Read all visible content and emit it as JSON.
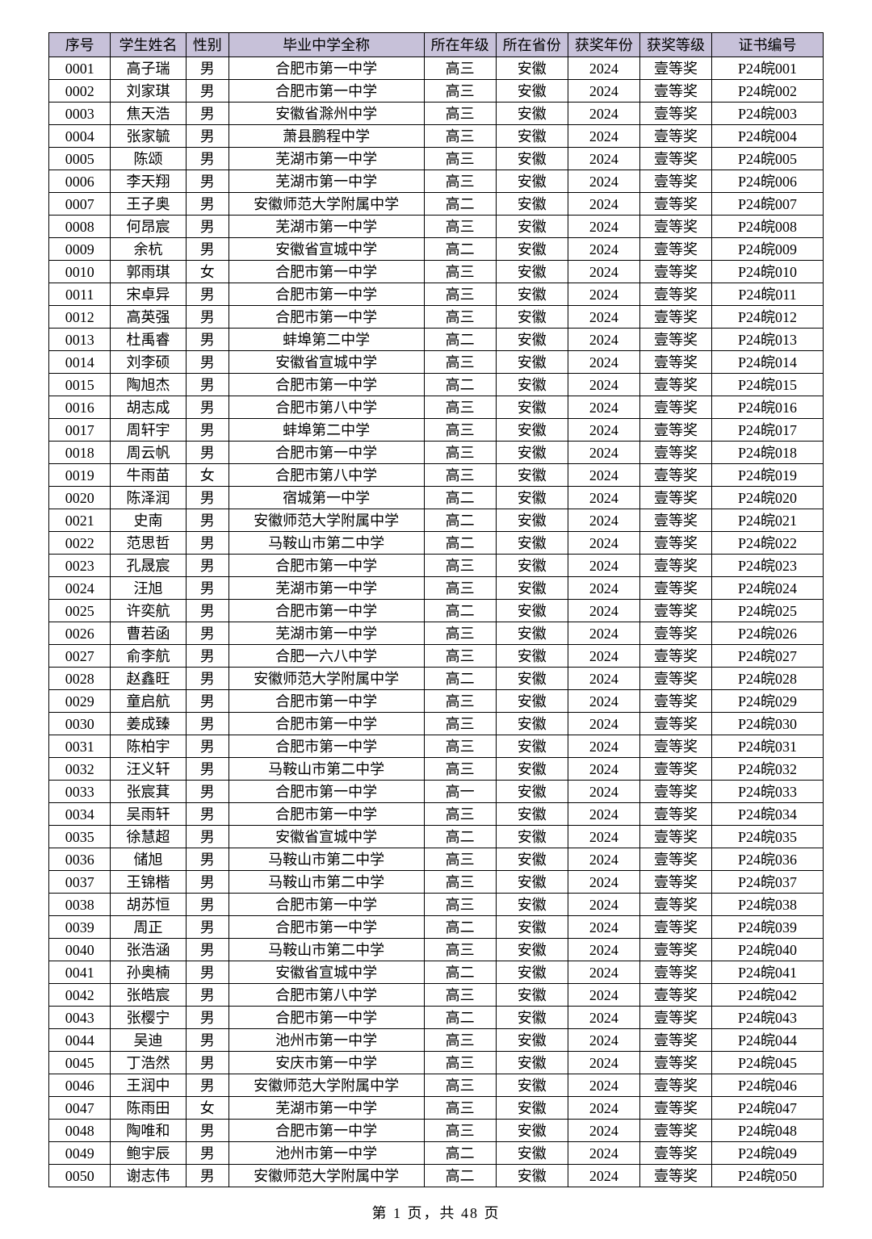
{
  "columns": [
    "序号",
    "学生姓名",
    "性别",
    "毕业中学全称",
    "所在年级",
    "所在省份",
    "获奖年份",
    "获奖等级",
    "证书编号"
  ],
  "rows": [
    [
      "0001",
      "高子瑞",
      "男",
      "合肥市第一中学",
      "高三",
      "安徽",
      "2024",
      "壹等奖",
      "P24皖001"
    ],
    [
      "0002",
      "刘家琪",
      "男",
      "合肥市第一中学",
      "高三",
      "安徽",
      "2024",
      "壹等奖",
      "P24皖002"
    ],
    [
      "0003",
      "焦天浩",
      "男",
      "安徽省滁州中学",
      "高三",
      "安徽",
      "2024",
      "壹等奖",
      "P24皖003"
    ],
    [
      "0004",
      "张家毓",
      "男",
      "萧县鹏程中学",
      "高三",
      "安徽",
      "2024",
      "壹等奖",
      "P24皖004"
    ],
    [
      "0005",
      "陈颂",
      "男",
      "芜湖市第一中学",
      "高三",
      "安徽",
      "2024",
      "壹等奖",
      "P24皖005"
    ],
    [
      "0006",
      "李天翔",
      "男",
      "芜湖市第一中学",
      "高三",
      "安徽",
      "2024",
      "壹等奖",
      "P24皖006"
    ],
    [
      "0007",
      "王子奥",
      "男",
      "安徽师范大学附属中学",
      "高二",
      "安徽",
      "2024",
      "壹等奖",
      "P24皖007"
    ],
    [
      "0008",
      "何昂宸",
      "男",
      "芜湖市第一中学",
      "高三",
      "安徽",
      "2024",
      "壹等奖",
      "P24皖008"
    ],
    [
      "0009",
      "余杭",
      "男",
      "安徽省宣城中学",
      "高二",
      "安徽",
      "2024",
      "壹等奖",
      "P24皖009"
    ],
    [
      "0010",
      "郭雨琪",
      "女",
      "合肥市第一中学",
      "高三",
      "安徽",
      "2024",
      "壹等奖",
      "P24皖010"
    ],
    [
      "0011",
      "宋卓异",
      "男",
      "合肥市第一中学",
      "高三",
      "安徽",
      "2024",
      "壹等奖",
      "P24皖011"
    ],
    [
      "0012",
      "高英强",
      "男",
      "合肥市第一中学",
      "高三",
      "安徽",
      "2024",
      "壹等奖",
      "P24皖012"
    ],
    [
      "0013",
      "杜禹睿",
      "男",
      "蚌埠第二中学",
      "高二",
      "安徽",
      "2024",
      "壹等奖",
      "P24皖013"
    ],
    [
      "0014",
      "刘李硕",
      "男",
      "安徽省宣城中学",
      "高三",
      "安徽",
      "2024",
      "壹等奖",
      "P24皖014"
    ],
    [
      "0015",
      "陶旭杰",
      "男",
      "合肥市第一中学",
      "高二",
      "安徽",
      "2024",
      "壹等奖",
      "P24皖015"
    ],
    [
      "0016",
      "胡志成",
      "男",
      "合肥市第八中学",
      "高三",
      "安徽",
      "2024",
      "壹等奖",
      "P24皖016"
    ],
    [
      "0017",
      "周轩宇",
      "男",
      "蚌埠第二中学",
      "高三",
      "安徽",
      "2024",
      "壹等奖",
      "P24皖017"
    ],
    [
      "0018",
      "周云帆",
      "男",
      "合肥市第一中学",
      "高三",
      "安徽",
      "2024",
      "壹等奖",
      "P24皖018"
    ],
    [
      "0019",
      "牛雨苗",
      "女",
      "合肥市第八中学",
      "高三",
      "安徽",
      "2024",
      "壹等奖",
      "P24皖019"
    ],
    [
      "0020",
      "陈泽润",
      "男",
      "宿城第一中学",
      "高二",
      "安徽",
      "2024",
      "壹等奖",
      "P24皖020"
    ],
    [
      "0021",
      "史南",
      "男",
      "安徽师范大学附属中学",
      "高二",
      "安徽",
      "2024",
      "壹等奖",
      "P24皖021"
    ],
    [
      "0022",
      "范思哲",
      "男",
      "马鞍山市第二中学",
      "高二",
      "安徽",
      "2024",
      "壹等奖",
      "P24皖022"
    ],
    [
      "0023",
      "孔晟宸",
      "男",
      "合肥市第一中学",
      "高三",
      "安徽",
      "2024",
      "壹等奖",
      "P24皖023"
    ],
    [
      "0024",
      "汪旭",
      "男",
      "芜湖市第一中学",
      "高三",
      "安徽",
      "2024",
      "壹等奖",
      "P24皖024"
    ],
    [
      "0025",
      "许奕航",
      "男",
      "合肥市第一中学",
      "高二",
      "安徽",
      "2024",
      "壹等奖",
      "P24皖025"
    ],
    [
      "0026",
      "曹若函",
      "男",
      "芜湖市第一中学",
      "高三",
      "安徽",
      "2024",
      "壹等奖",
      "P24皖026"
    ],
    [
      "0027",
      "俞李航",
      "男",
      "合肥一六八中学",
      "高三",
      "安徽",
      "2024",
      "壹等奖",
      "P24皖027"
    ],
    [
      "0028",
      "赵鑫旺",
      "男",
      "安徽师范大学附属中学",
      "高二",
      "安徽",
      "2024",
      "壹等奖",
      "P24皖028"
    ],
    [
      "0029",
      "童启航",
      "男",
      "合肥市第一中学",
      "高三",
      "安徽",
      "2024",
      "壹等奖",
      "P24皖029"
    ],
    [
      "0030",
      "姜成臻",
      "男",
      "合肥市第一中学",
      "高三",
      "安徽",
      "2024",
      "壹等奖",
      "P24皖030"
    ],
    [
      "0031",
      "陈柏宇",
      "男",
      "合肥市第一中学",
      "高三",
      "安徽",
      "2024",
      "壹等奖",
      "P24皖031"
    ],
    [
      "0032",
      "汪义轩",
      "男",
      "马鞍山市第二中学",
      "高三",
      "安徽",
      "2024",
      "壹等奖",
      "P24皖032"
    ],
    [
      "0033",
      "张宸萁",
      "男",
      "合肥市第一中学",
      "高一",
      "安徽",
      "2024",
      "壹等奖",
      "P24皖033"
    ],
    [
      "0034",
      "吴雨轩",
      "男",
      "合肥市第一中学",
      "高三",
      "安徽",
      "2024",
      "壹等奖",
      "P24皖034"
    ],
    [
      "0035",
      "徐慧超",
      "男",
      "安徽省宣城中学",
      "高二",
      "安徽",
      "2024",
      "壹等奖",
      "P24皖035"
    ],
    [
      "0036",
      "储旭",
      "男",
      "马鞍山市第二中学",
      "高三",
      "安徽",
      "2024",
      "壹等奖",
      "P24皖036"
    ],
    [
      "0037",
      "王锦楷",
      "男",
      "马鞍山市第二中学",
      "高三",
      "安徽",
      "2024",
      "壹等奖",
      "P24皖037"
    ],
    [
      "0038",
      "胡苏恒",
      "男",
      "合肥市第一中学",
      "高三",
      "安徽",
      "2024",
      "壹等奖",
      "P24皖038"
    ],
    [
      "0039",
      "周正",
      "男",
      "合肥市第一中学",
      "高二",
      "安徽",
      "2024",
      "壹等奖",
      "P24皖039"
    ],
    [
      "0040",
      "张浩涵",
      "男",
      "马鞍山市第二中学",
      "高三",
      "安徽",
      "2024",
      "壹等奖",
      "P24皖040"
    ],
    [
      "0041",
      "孙奥楠",
      "男",
      "安徽省宣城中学",
      "高二",
      "安徽",
      "2024",
      "壹等奖",
      "P24皖041"
    ],
    [
      "0042",
      "张皓宸",
      "男",
      "合肥市第八中学",
      "高三",
      "安徽",
      "2024",
      "壹等奖",
      "P24皖042"
    ],
    [
      "0043",
      "张樱宁",
      "男",
      "合肥市第一中学",
      "高二",
      "安徽",
      "2024",
      "壹等奖",
      "P24皖043"
    ],
    [
      "0044",
      "吴迪",
      "男",
      "池州市第一中学",
      "高三",
      "安徽",
      "2024",
      "壹等奖",
      "P24皖044"
    ],
    [
      "0045",
      "丁浩然",
      "男",
      "安庆市第一中学",
      "高三",
      "安徽",
      "2024",
      "壹等奖",
      "P24皖045"
    ],
    [
      "0046",
      "王润中",
      "男",
      "安徽师范大学附属中学",
      "高三",
      "安徽",
      "2024",
      "壹等奖",
      "P24皖046"
    ],
    [
      "0047",
      "陈雨田",
      "女",
      "芜湖市第一中学",
      "高三",
      "安徽",
      "2024",
      "壹等奖",
      "P24皖047"
    ],
    [
      "0048",
      "陶唯和",
      "男",
      "合肥市第一中学",
      "高三",
      "安徽",
      "2024",
      "壹等奖",
      "P24皖048"
    ],
    [
      "0049",
      "鲍宇辰",
      "男",
      "池州市第一中学",
      "高二",
      "安徽",
      "2024",
      "壹等奖",
      "P24皖049"
    ],
    [
      "0050",
      "谢志伟",
      "男",
      "安徽师范大学附属中学",
      "高二",
      "安徽",
      "2024",
      "壹等奖",
      "P24皖050"
    ]
  ],
  "footer": "第 1 页，共 48 页"
}
